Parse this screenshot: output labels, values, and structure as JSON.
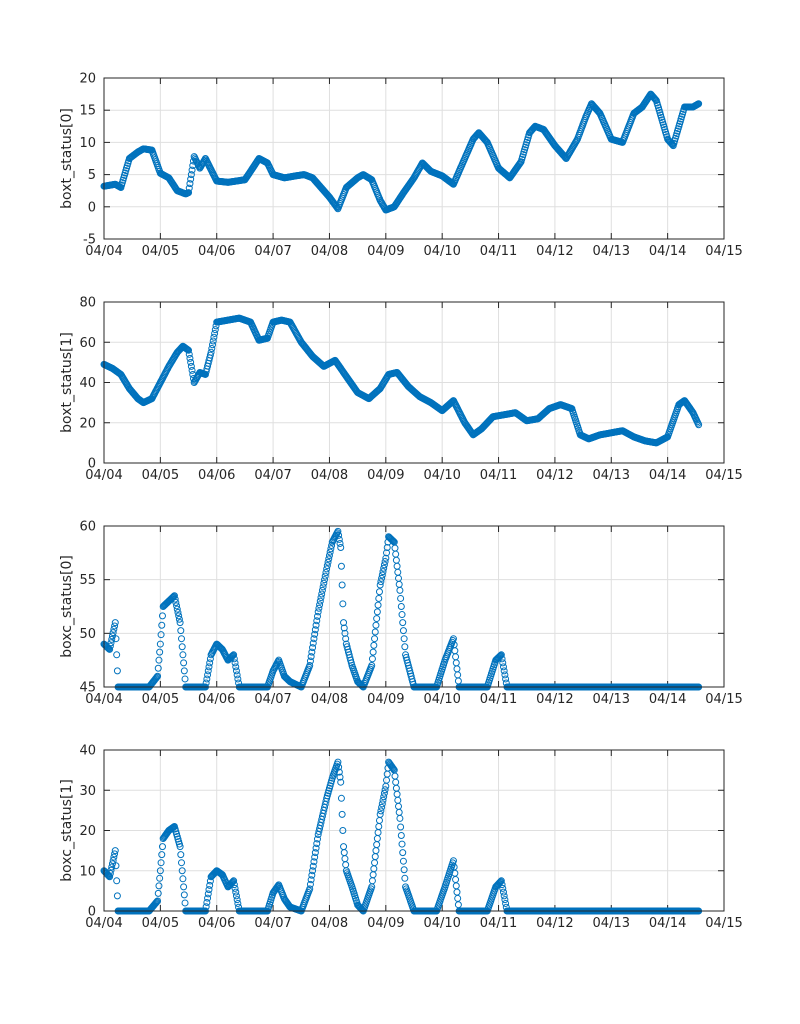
{
  "chart_data": [
    {
      "type": "scatter",
      "ylabel": "boxt_status[0]",
      "ylim": [
        -5,
        20
      ],
      "yticks": [
        "-5",
        "0",
        "5",
        "10",
        "15",
        "20"
      ],
      "xlim": [
        0,
        11
      ],
      "xticks": [
        "04/04",
        "04/05",
        "04/06",
        "04/07",
        "04/08",
        "04/09",
        "04/10",
        "04/11",
        "04/12",
        "04/13",
        "04/14",
        "04/15"
      ],
      "grid": true,
      "marker": "circle-open",
      "color": "#0072bd",
      "series": [
        {
          "name": "boxt_status[0]",
          "x": [
            0.0,
            0.2,
            0.3,
            0.45,
            0.6,
            0.7,
            0.85,
            1.0,
            1.15,
            1.3,
            1.45,
            1.5,
            1.6,
            1.7,
            1.8,
            2.0,
            2.2,
            2.35,
            2.5,
            2.6,
            2.75,
            2.9,
            3.0,
            3.2,
            3.4,
            3.55,
            3.7,
            3.85,
            4.0,
            4.15,
            4.3,
            4.5,
            4.6,
            4.75,
            4.9,
            5.0,
            5.15,
            5.3,
            5.5,
            5.65,
            5.8,
            6.0,
            6.2,
            6.4,
            6.55,
            6.65,
            6.8,
            7.0,
            7.2,
            7.4,
            7.55,
            7.65,
            7.8,
            8.0,
            8.2,
            8.4,
            8.55,
            8.65,
            8.8,
            9.0,
            9.2,
            9.4,
            9.55,
            9.7,
            9.8,
            10.0,
            10.1,
            10.3,
            10.45,
            10.55
          ],
          "y": [
            3.2,
            3.5,
            3.0,
            7.5,
            8.5,
            9.0,
            8.8,
            5.2,
            4.5,
            2.5,
            2.0,
            2.2,
            7.8,
            6.0,
            7.5,
            4.0,
            3.8,
            4.0,
            4.2,
            5.5,
            7.5,
            6.8,
            5.0,
            4.5,
            4.8,
            5.0,
            4.5,
            3.0,
            1.5,
            -0.3,
            3.0,
            4.5,
            5.0,
            4.2,
            1.0,
            -0.5,
            0.0,
            2.0,
            4.5,
            6.8,
            5.5,
            4.8,
            3.5,
            7.5,
            10.5,
            11.5,
            10.0,
            6.0,
            4.5,
            7.0,
            11.5,
            12.5,
            12.0,
            9.5,
            7.5,
            10.5,
            14.0,
            16.0,
            14.5,
            10.5,
            10.0,
            14.5,
            15.5,
            17.5,
            16.5,
            10.5,
            9.5,
            15.5,
            15.5,
            16.0
          ]
        }
      ]
    },
    {
      "type": "scatter",
      "ylabel": "boxt_status[1]",
      "ylim": [
        0,
        80
      ],
      "yticks": [
        "0",
        "20",
        "40",
        "60",
        "80"
      ],
      "xlim": [
        0,
        11
      ],
      "xticks": [
        "04/04",
        "04/05",
        "04/06",
        "04/07",
        "04/08",
        "04/09",
        "04/10",
        "04/11",
        "04/12",
        "04/13",
        "04/14",
        "04/15"
      ],
      "grid": true,
      "marker": "circle-open",
      "color": "#0072bd",
      "series": [
        {
          "name": "boxt_status[1]",
          "x": [
            0.0,
            0.15,
            0.3,
            0.45,
            0.6,
            0.7,
            0.85,
            1.0,
            1.15,
            1.3,
            1.4,
            1.5,
            1.6,
            1.7,
            1.8,
            1.9,
            2.0,
            2.2,
            2.4,
            2.6,
            2.75,
            2.9,
            3.0,
            3.15,
            3.3,
            3.5,
            3.7,
            3.9,
            4.1,
            4.3,
            4.5,
            4.7,
            4.9,
            5.05,
            5.2,
            5.4,
            5.6,
            5.8,
            6.0,
            6.2,
            6.4,
            6.55,
            6.7,
            6.9,
            7.1,
            7.3,
            7.5,
            7.7,
            7.9,
            8.1,
            8.3,
            8.45,
            8.6,
            8.8,
            9.0,
            9.2,
            9.4,
            9.6,
            9.8,
            10.0,
            10.2,
            10.3,
            10.45,
            10.55
          ],
          "y": [
            49,
            47,
            44,
            37,
            32,
            30,
            32,
            40,
            48,
            55,
            58,
            56,
            40,
            45,
            44,
            55,
            70,
            71,
            72,
            70,
            61,
            62,
            70,
            71,
            70,
            60,
            53,
            48,
            51,
            43,
            35,
            32,
            37,
            44,
            45,
            38,
            33,
            30,
            26,
            31,
            20,
            14,
            17,
            23,
            24,
            25,
            21,
            22,
            27,
            29,
            27,
            14,
            12,
            14,
            15,
            16,
            13,
            11,
            10,
            13,
            29,
            31,
            25,
            19
          ]
        }
      ]
    },
    {
      "type": "scatter",
      "ylabel": "boxc_status[0]",
      "ylim": [
        45,
        60
      ],
      "yticks": [
        "45",
        "50",
        "55",
        "60"
      ],
      "xlim": [
        0,
        11
      ],
      "xticks": [
        "04/04",
        "04/05",
        "04/06",
        "04/07",
        "04/08",
        "04/09",
        "04/10",
        "04/11",
        "04/12",
        "04/13",
        "04/14",
        "04/15"
      ],
      "grid": true,
      "marker": "circle-open",
      "color": "#0072bd",
      "series": [
        {
          "name": "boxc_status[0]",
          "x": [
            0.0,
            0.1,
            0.2,
            0.25,
            0.3,
            0.5,
            0.8,
            0.95,
            1.0,
            1.05,
            1.15,
            1.25,
            1.35,
            1.45,
            1.5,
            1.6,
            1.8,
            1.9,
            2.0,
            2.1,
            2.2,
            2.3,
            2.4,
            2.55,
            2.7,
            2.9,
            3.0,
            3.1,
            3.2,
            3.3,
            3.5,
            3.65,
            3.8,
            3.95,
            4.05,
            4.15,
            4.2,
            4.25,
            4.3,
            4.4,
            4.5,
            4.6,
            4.75,
            4.9,
            5.0,
            5.05,
            5.15,
            5.25,
            5.35,
            5.5,
            5.7,
            5.9,
            6.05,
            6.2,
            6.3,
            6.4,
            6.6,
            6.8,
            6.95,
            7.05,
            7.15,
            7.3,
            7.5,
            8.0,
            9.0,
            10.0,
            10.55
          ],
          "y": [
            49.0,
            48.5,
            51.0,
            45.0,
            45.0,
            45.0,
            45.0,
            46.0,
            49.0,
            52.5,
            53.0,
            53.5,
            51.0,
            45.0,
            45.0,
            45.0,
            45.0,
            48.0,
            49.0,
            48.5,
            47.5,
            48.0,
            45.0,
            45.0,
            45.0,
            45.0,
            46.5,
            47.5,
            46.0,
            45.5,
            45.0,
            47.0,
            52.0,
            56.0,
            58.5,
            59.5,
            58.0,
            51.0,
            49.0,
            47.0,
            45.5,
            45.0,
            47.0,
            54.5,
            57.0,
            59.0,
            58.5,
            54.0,
            48.0,
            45.0,
            45.0,
            45.0,
            47.5,
            49.5,
            45.0,
            45.0,
            45.0,
            45.0,
            47.5,
            48.0,
            45.0,
            45.0,
            45.0,
            45.0,
            45.0,
            45.0,
            45.0
          ]
        }
      ]
    },
    {
      "type": "scatter",
      "ylabel": "boxc_status[1]",
      "ylim": [
        0,
        40
      ],
      "yticks": [
        "0",
        "10",
        "20",
        "30",
        "40"
      ],
      "xlim": [
        0,
        11
      ],
      "xticks": [
        "04/04",
        "04/05",
        "04/06",
        "04/07",
        "04/08",
        "04/09",
        "04/10",
        "04/11",
        "04/12",
        "04/13",
        "04/14",
        "04/15"
      ],
      "grid": true,
      "marker": "circle-open",
      "color": "#0072bd",
      "series": [
        {
          "name": "boxc_status[1]",
          "x": [
            0.0,
            0.1,
            0.2,
            0.25,
            0.3,
            0.5,
            0.8,
            0.95,
            1.0,
            1.05,
            1.15,
            1.25,
            1.35,
            1.45,
            1.5,
            1.6,
            1.8,
            1.9,
            2.0,
            2.1,
            2.2,
            2.3,
            2.4,
            2.55,
            2.7,
            2.9,
            3.0,
            3.1,
            3.2,
            3.3,
            3.5,
            3.65,
            3.8,
            3.95,
            4.05,
            4.15,
            4.2,
            4.25,
            4.3,
            4.4,
            4.5,
            4.6,
            4.75,
            4.9,
            5.0,
            5.05,
            5.15,
            5.25,
            5.35,
            5.5,
            5.7,
            5.9,
            6.05,
            6.2,
            6.3,
            6.4,
            6.6,
            6.8,
            6.95,
            7.05,
            7.15,
            7.3,
            7.5,
            8.0,
            9.0,
            10.0,
            10.55
          ],
          "y": [
            10.0,
            8.5,
            15.0,
            0.0,
            0.0,
            0.0,
            0.0,
            2.5,
            10.0,
            18.0,
            20.0,
            21.0,
            16.0,
            0.0,
            0.0,
            0.0,
            0.0,
            8.5,
            10.0,
            9.0,
            6.0,
            7.5,
            0.0,
            0.0,
            0.0,
            0.0,
            4.5,
            6.5,
            3.0,
            1.0,
            0.0,
            5.5,
            19.0,
            28.0,
            33.0,
            37.0,
            32.0,
            16.0,
            10.0,
            6.0,
            1.5,
            0.0,
            6.0,
            24.0,
            31.0,
            37.0,
            35.0,
            23.0,
            6.0,
            0.0,
            0.0,
            0.0,
            6.0,
            12.5,
            0.0,
            0.0,
            0.0,
            0.0,
            6.0,
            7.5,
            0.0,
            0.0,
            0.0,
            0.0,
            0.0,
            0.0,
            0.0
          ]
        }
      ]
    }
  ]
}
